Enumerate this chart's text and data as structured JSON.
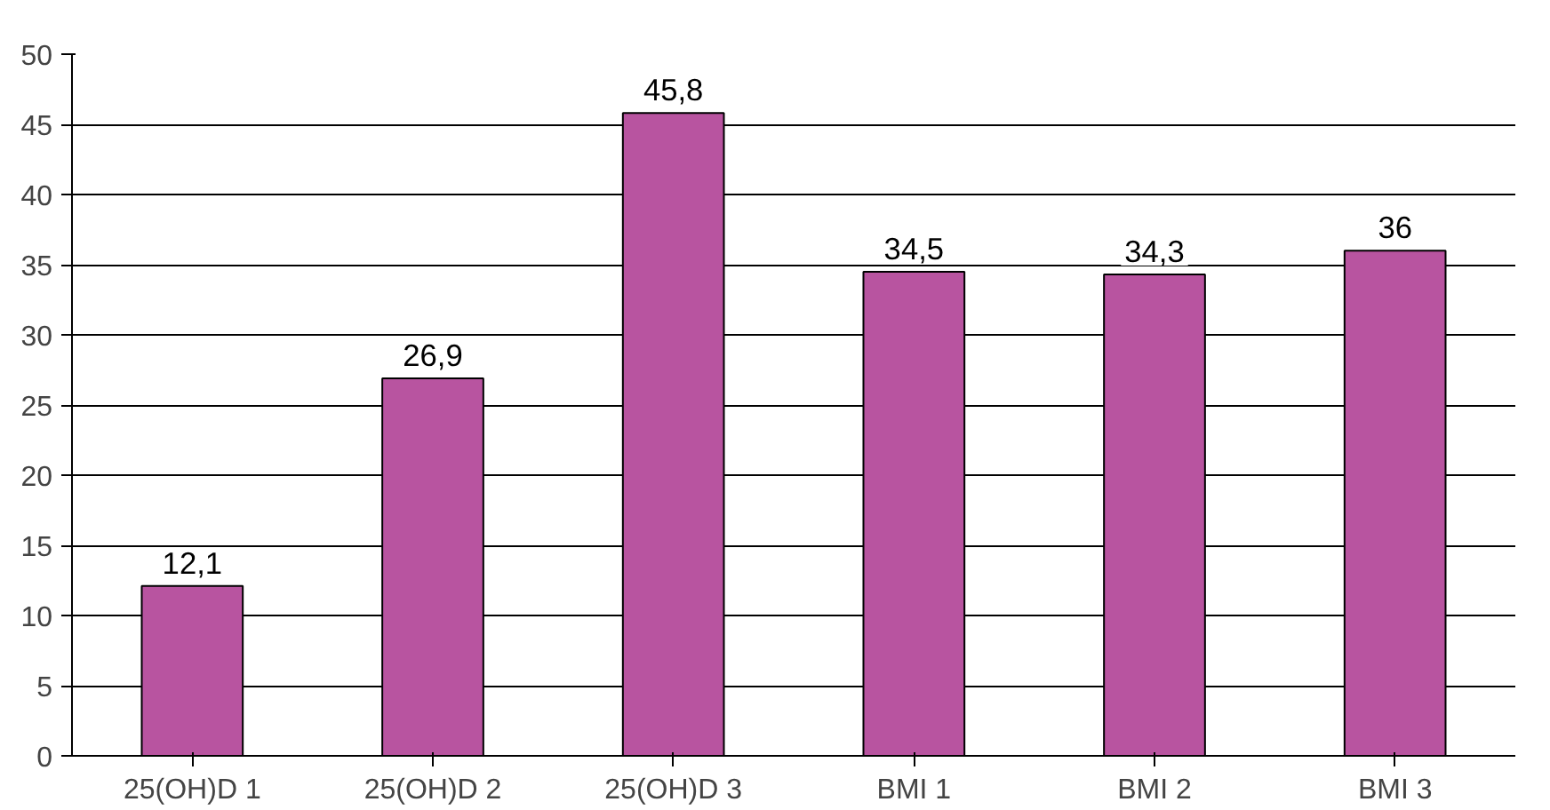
{
  "chart_data": {
    "type": "bar",
    "categories": [
      "25(OH)D 1",
      "25(OH)D 2",
      "25(OH)D 3",
      "BMI 1",
      "BMI 2",
      "BMI 3"
    ],
    "values": [
      12.1,
      26.9,
      45.8,
      34.5,
      34.3,
      36
    ],
    "value_labels": [
      "12,1",
      "26,9",
      "45,8",
      "34,5",
      "34,3",
      "36"
    ],
    "color": "#b854a0",
    "ylim": [
      0,
      50
    ],
    "yticks": [
      0,
      5,
      10,
      15,
      20,
      25,
      30,
      35,
      40,
      45,
      50
    ],
    "grid": "y"
  }
}
